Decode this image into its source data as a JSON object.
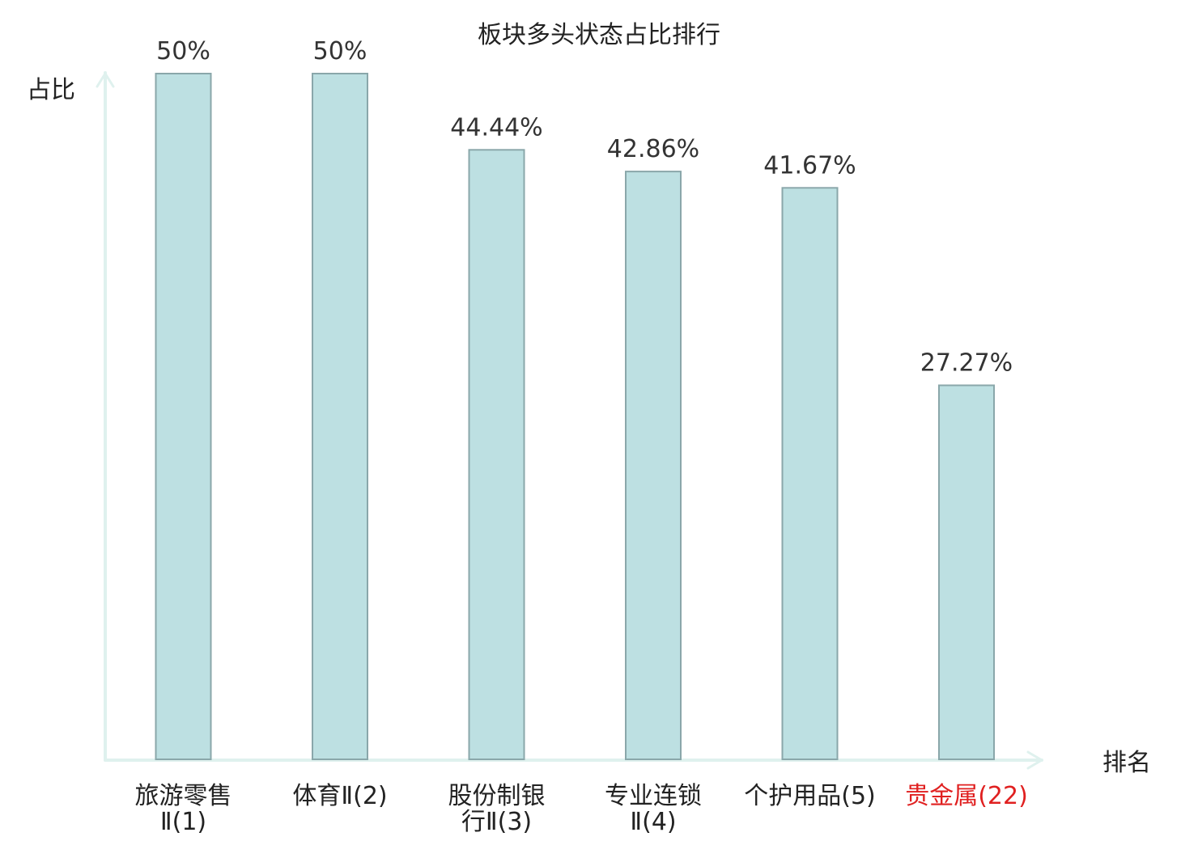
{
  "chart_data": {
    "type": "bar",
    "title": "板块多头状态占比排行",
    "ylabel": "占比",
    "xlabel": "排名",
    "ylim": [
      0,
      50
    ],
    "grid": false,
    "categories": [
      {
        "name_lines": [
          "旅游零售",
          "Ⅱ(1)"
        ],
        "value": 50,
        "value_label": "50%",
        "highlight": false
      },
      {
        "name_lines": [
          "体育Ⅱ(2)"
        ],
        "value": 50,
        "value_label": "50%",
        "highlight": false
      },
      {
        "name_lines": [
          "股份制银",
          "行Ⅱ(3)"
        ],
        "value": 44.44,
        "value_label": "44.44%",
        "highlight": false
      },
      {
        "name_lines": [
          "专业连锁",
          "Ⅱ(4)"
        ],
        "value": 42.86,
        "value_label": "42.86%",
        "highlight": false
      },
      {
        "name_lines": [
          "个护用品(5)"
        ],
        "value": 41.67,
        "value_label": "41.67%",
        "highlight": false
      },
      {
        "name_lines": [
          "贵金属(22)"
        ],
        "value": 27.27,
        "value_label": "27.27%",
        "highlight": true
      }
    ],
    "colors": {
      "bar_fill": "#bde0e2",
      "bar_stroke": "#8aa7aa",
      "axis": "#dff1ee",
      "highlight_text": "#e02020",
      "text": "#222222"
    }
  }
}
